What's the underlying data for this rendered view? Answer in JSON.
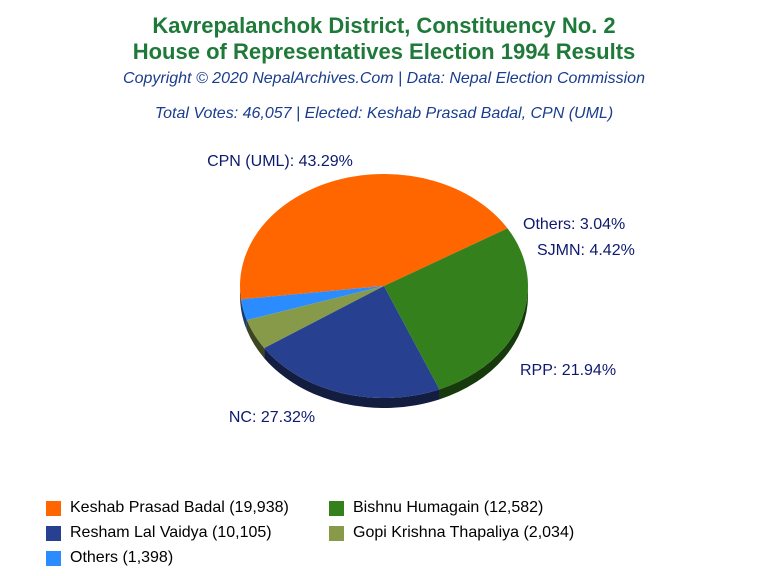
{
  "colors": {
    "title": "#1f7a3a",
    "subtitle": "#1a3d8f",
    "label": "#0d1a6e"
  },
  "header": {
    "title_line1": "Kavrepalanchok District, Constituency No. 2",
    "title_line2": "House of Representatives Election 1994 Results",
    "copyright": "Copyright © 2020 NepalArchives.Com | Data: Nepal Election Commission",
    "summary": "Total Votes: 46,057 | Elected: Keshab Prasad Badal, CPN (UML)"
  },
  "chart_data": {
    "type": "pie",
    "title": "Kavrepalanchok District, Constituency No. 2 House of Representatives Election 1994 Results",
    "slices": [
      {
        "label": "CPN (UML): 43.29%",
        "party": "CPN (UML)",
        "percent": 43.29,
        "color": "#ff6600",
        "legend": "Keshab Prasad Badal (19,938)",
        "votes": 19938
      },
      {
        "label": "Others: 3.04%",
        "party": "Others",
        "percent": 3.04,
        "color": "#2b8cff",
        "legend": "Others (1,398)",
        "votes": 1398
      },
      {
        "label": "SJMN: 4.42%",
        "party": "SJMN",
        "percent": 4.42,
        "color": "#869a4a",
        "legend": "Gopi Krishna Thapaliya (2,034)",
        "votes": 2034
      },
      {
        "label": "RPP: 21.94%",
        "party": "RPP",
        "percent": 21.94,
        "color": "#27408f",
        "legend": "Resham Lal Vaidya (10,105)",
        "votes": 10105
      },
      {
        "label": "NC: 27.32%",
        "party": "NC",
        "percent": 27.32,
        "color": "#34801c",
        "legend": "Bishnu Humagain (12,582)",
        "votes": 12582
      }
    ],
    "legend_order": [
      0,
      4,
      3,
      2,
      1
    ]
  }
}
